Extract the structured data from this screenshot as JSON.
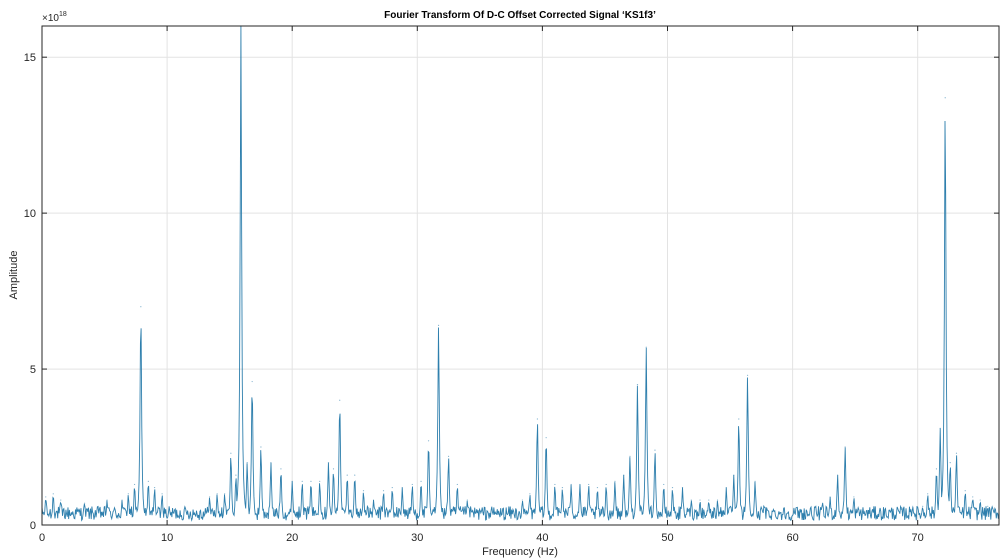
{
  "chart_data": {
    "type": "line",
    "title": "Fourier Transform Of D-C Offset Corrected Signal ‘KS1f3’",
    "xlabel": "Frequency (Hz)",
    "ylabel": "Amplitude",
    "y_exponent_base": "×10",
    "y_exponent_power": "18",
    "xlim": [
      0,
      76.5
    ],
    "ylim": [
      0,
      16
    ],
    "grid": true,
    "x_ticks": [
      0,
      10,
      20,
      30,
      40,
      50,
      60,
      70
    ],
    "x_tick_labels": [
      "0",
      "10",
      "20",
      "30",
      "40",
      "50",
      "60",
      "70"
    ],
    "y_ticks": [
      0,
      5,
      10,
      15
    ],
    "y_tick_labels": [
      "0",
      "5",
      "10",
      "15"
    ],
    "line_color": "#2e7fad",
    "peaks": [
      {
        "x": 0.3,
        "y": 0.9
      },
      {
        "x": 0.9,
        "y": 1.0
      },
      {
        "x": 1.5,
        "y": 0.8
      },
      {
        "x": 3.4,
        "y": 0.7
      },
      {
        "x": 5.2,
        "y": 0.8
      },
      {
        "x": 6.4,
        "y": 0.8
      },
      {
        "x": 6.9,
        "y": 1.0
      },
      {
        "x": 7.4,
        "y": 1.3
      },
      {
        "x": 7.9,
        "y": 7.0
      },
      {
        "x": 8.5,
        "y": 1.4
      },
      {
        "x": 9.0,
        "y": 1.2
      },
      {
        "x": 9.6,
        "y": 1.0
      },
      {
        "x": 13.4,
        "y": 0.9
      },
      {
        "x": 14.0,
        "y": 1.0
      },
      {
        "x": 14.6,
        "y": 1.0
      },
      {
        "x": 15.1,
        "y": 2.3
      },
      {
        "x": 15.5,
        "y": 1.6
      },
      {
        "x": 15.9,
        "y": 16.0
      },
      {
        "x": 16.4,
        "y": 2.0
      },
      {
        "x": 16.8,
        "y": 4.6
      },
      {
        "x": 17.5,
        "y": 2.5
      },
      {
        "x": 18.3,
        "y": 2.0
      },
      {
        "x": 19.1,
        "y": 1.8
      },
      {
        "x": 20.0,
        "y": 1.4
      },
      {
        "x": 20.8,
        "y": 1.4
      },
      {
        "x": 21.5,
        "y": 1.4
      },
      {
        "x": 22.2,
        "y": 1.4
      },
      {
        "x": 22.9,
        "y": 2.0
      },
      {
        "x": 23.3,
        "y": 1.8
      },
      {
        "x": 23.8,
        "y": 4.0
      },
      {
        "x": 24.4,
        "y": 1.6
      },
      {
        "x": 25.0,
        "y": 1.6
      },
      {
        "x": 25.7,
        "y": 1.1
      },
      {
        "x": 26.5,
        "y": 0.8
      },
      {
        "x": 27.3,
        "y": 1.1
      },
      {
        "x": 28.0,
        "y": 1.2
      },
      {
        "x": 28.8,
        "y": 1.2
      },
      {
        "x": 29.6,
        "y": 1.3
      },
      {
        "x": 30.3,
        "y": 1.4
      },
      {
        "x": 30.9,
        "y": 2.7
      },
      {
        "x": 31.7,
        "y": 6.4
      },
      {
        "x": 32.5,
        "y": 2.2
      },
      {
        "x": 33.2,
        "y": 1.3
      },
      {
        "x": 34.0,
        "y": 0.8
      },
      {
        "x": 38.4,
        "y": 0.8
      },
      {
        "x": 39.0,
        "y": 1.0
      },
      {
        "x": 39.6,
        "y": 3.4
      },
      {
        "x": 40.3,
        "y": 2.8
      },
      {
        "x": 41.0,
        "y": 1.3
      },
      {
        "x": 41.6,
        "y": 1.2
      },
      {
        "x": 42.3,
        "y": 1.3
      },
      {
        "x": 43.0,
        "y": 1.3
      },
      {
        "x": 43.7,
        "y": 1.3
      },
      {
        "x": 44.4,
        "y": 1.2
      },
      {
        "x": 45.1,
        "y": 1.3
      },
      {
        "x": 45.8,
        "y": 1.4
      },
      {
        "x": 46.5,
        "y": 1.6
      },
      {
        "x": 47.0,
        "y": 2.2
      },
      {
        "x": 47.6,
        "y": 4.5
      },
      {
        "x": 48.3,
        "y": 5.7
      },
      {
        "x": 49.0,
        "y": 2.4
      },
      {
        "x": 49.7,
        "y": 1.3
      },
      {
        "x": 50.4,
        "y": 1.2
      },
      {
        "x": 51.2,
        "y": 1.2
      },
      {
        "x": 51.9,
        "y": 0.8
      },
      {
        "x": 52.6,
        "y": 0.8
      },
      {
        "x": 53.3,
        "y": 0.8
      },
      {
        "x": 54.0,
        "y": 0.8
      },
      {
        "x": 54.7,
        "y": 1.2
      },
      {
        "x": 55.3,
        "y": 1.6
      },
      {
        "x": 55.7,
        "y": 3.4
      },
      {
        "x": 56.4,
        "y": 4.8
      },
      {
        "x": 57.0,
        "y": 1.4
      },
      {
        "x": 57.7,
        "y": 0.6
      },
      {
        "x": 62.4,
        "y": 0.7
      },
      {
        "x": 63.0,
        "y": 0.9
      },
      {
        "x": 63.6,
        "y": 1.6
      },
      {
        "x": 64.2,
        "y": 2.5
      },
      {
        "x": 64.9,
        "y": 0.9
      },
      {
        "x": 68.7,
        "y": 0.5
      },
      {
        "x": 69.6,
        "y": 0.6
      },
      {
        "x": 70.4,
        "y": 0.6
      },
      {
        "x": 70.8,
        "y": 1.0
      },
      {
        "x": 71.5,
        "y": 1.8
      },
      {
        "x": 71.8,
        "y": 3.1
      },
      {
        "x": 72.2,
        "y": 13.7
      },
      {
        "x": 72.6,
        "y": 2.0
      },
      {
        "x": 73.1,
        "y": 2.3
      },
      {
        "x": 73.8,
        "y": 1.1
      },
      {
        "x": 74.4,
        "y": 0.9
      },
      {
        "x": 75.0,
        "y": 0.8
      },
      {
        "x": 75.6,
        "y": 0.6
      },
      {
        "x": 76.2,
        "y": 0.5
      }
    ]
  }
}
